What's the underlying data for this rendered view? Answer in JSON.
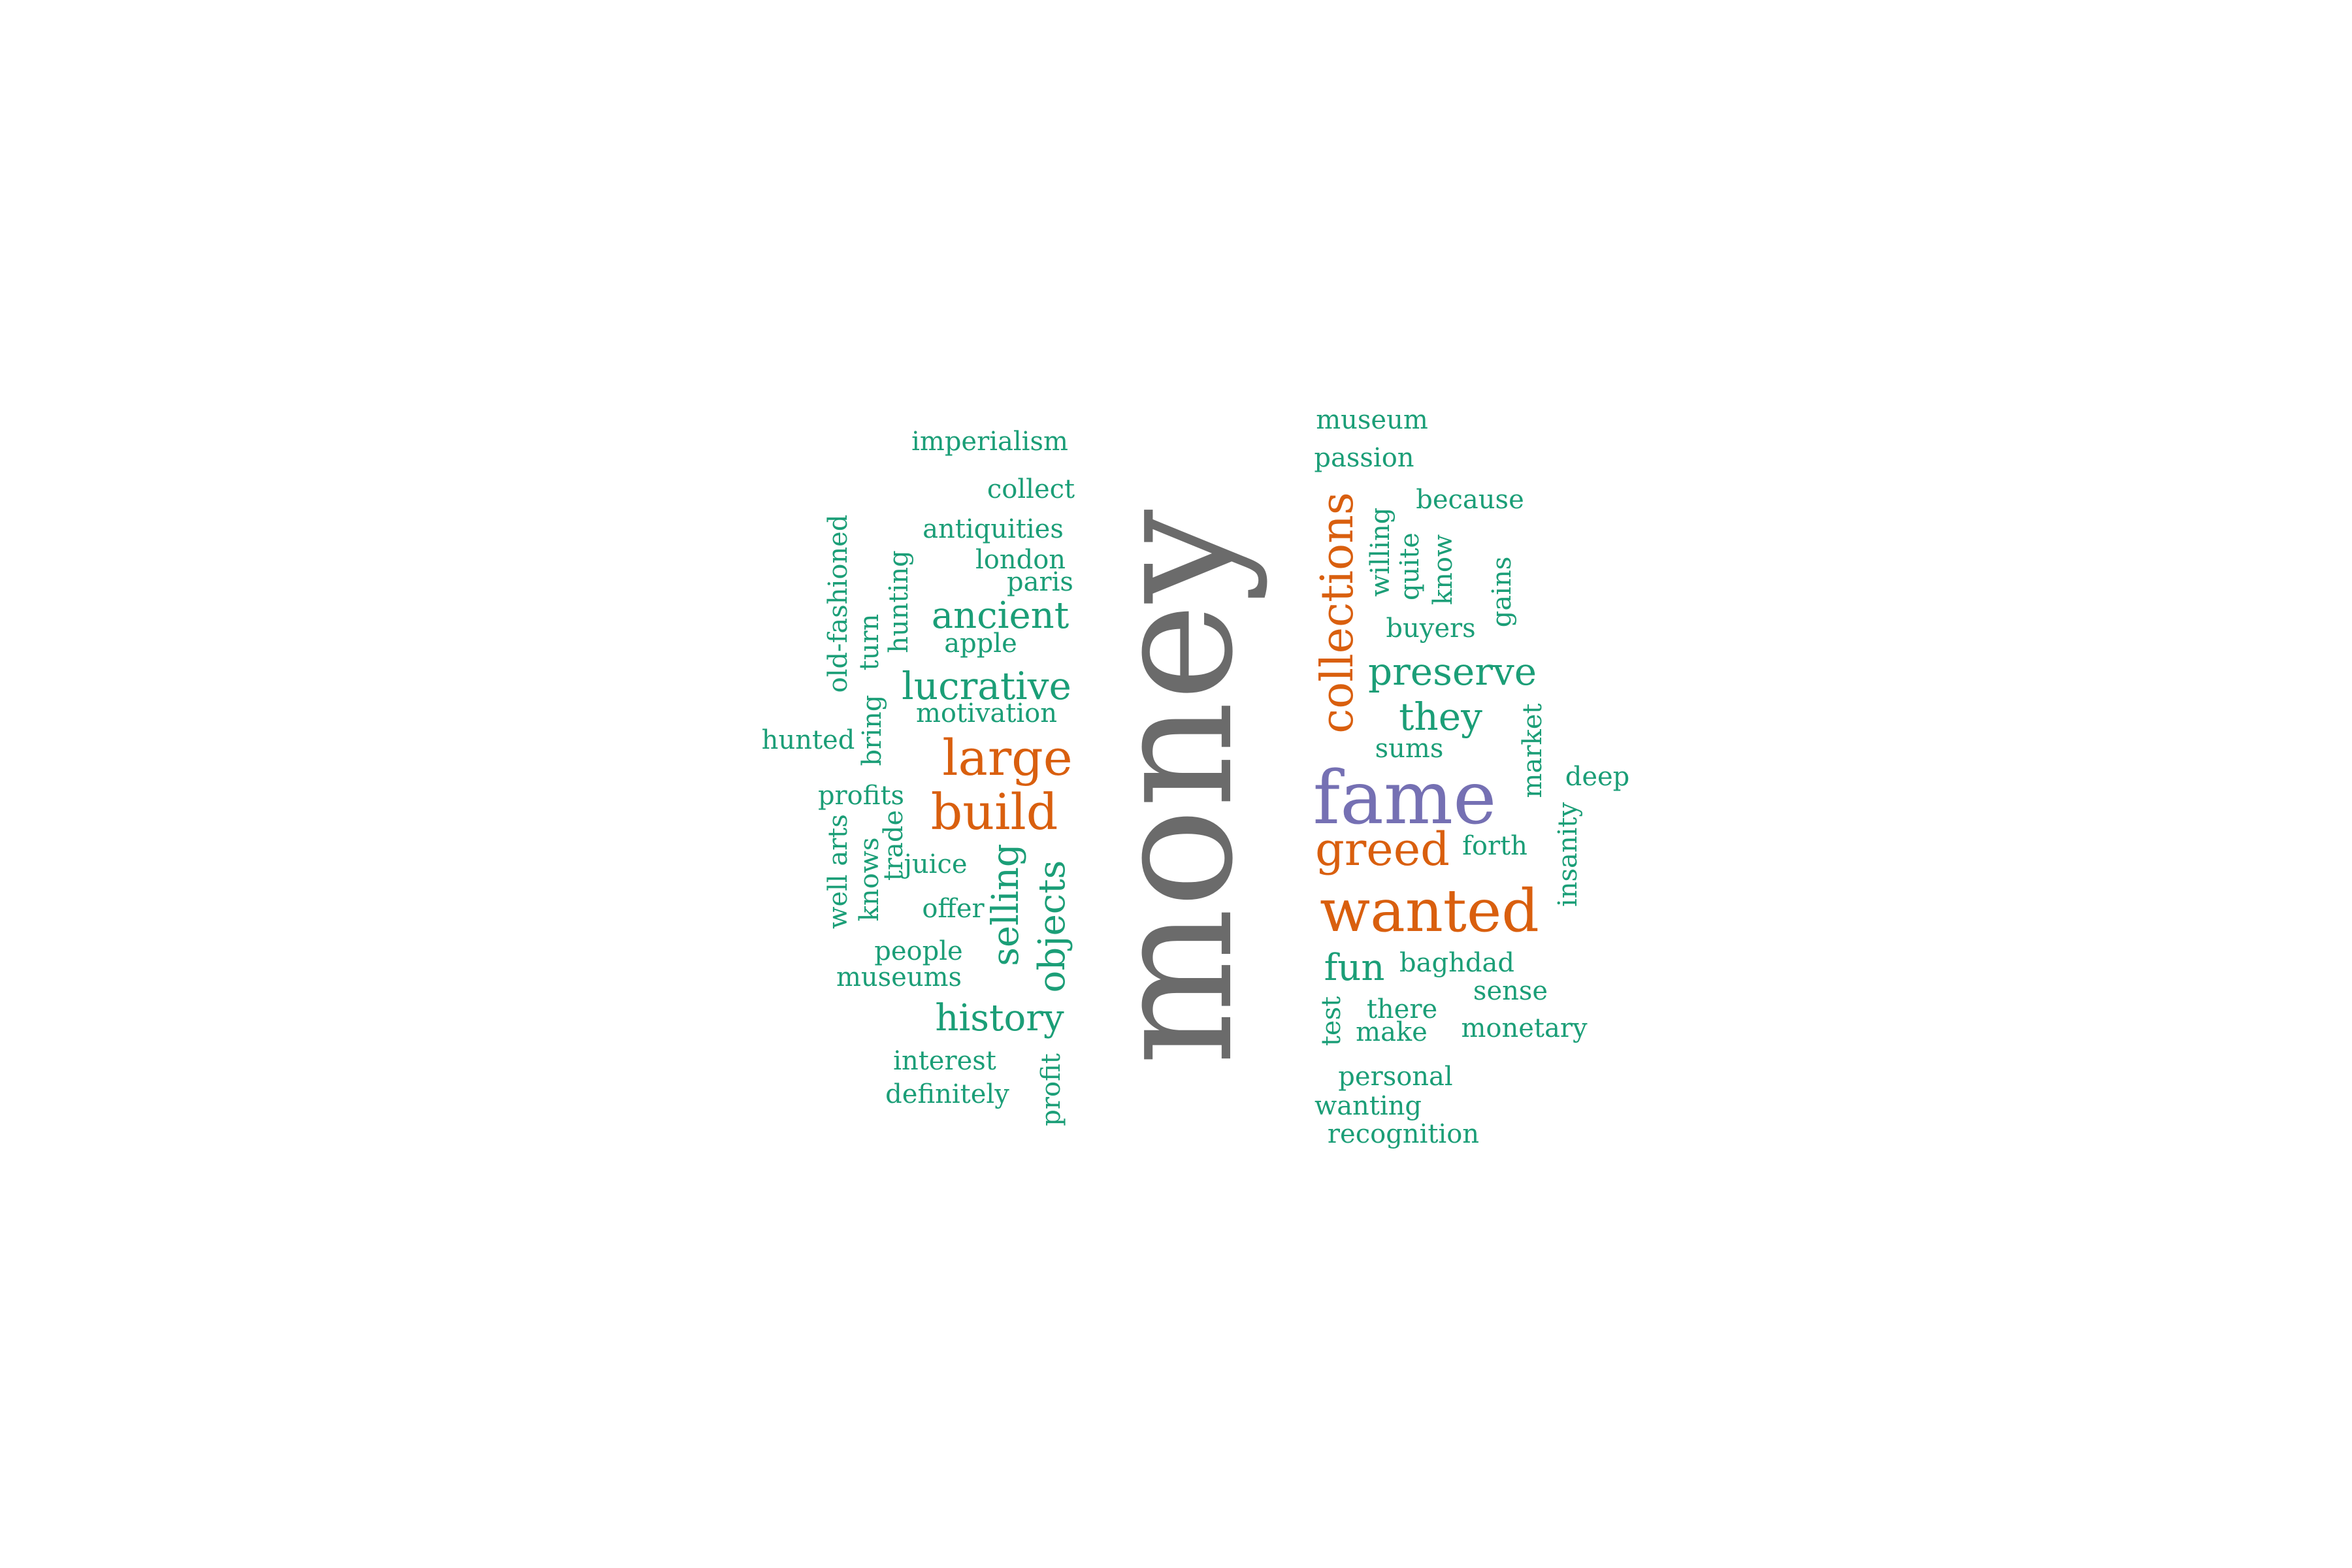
{
  "colors": {
    "gray": "#6b6b6b",
    "orange": "#d95f0e",
    "purple": "#7570b3",
    "green": "#1b9e77"
  },
  "words": [
    {
      "text": "money",
      "color": "gray"
    },
    {
      "text": "fame",
      "color": "purple"
    },
    {
      "text": "wanted",
      "color": "orange"
    },
    {
      "text": "collections",
      "color": "orange"
    },
    {
      "text": "large",
      "color": "orange"
    },
    {
      "text": "build",
      "color": "orange"
    },
    {
      "text": "greed",
      "color": "orange"
    },
    {
      "text": "museum",
      "color": "green"
    },
    {
      "text": "passion",
      "color": "green"
    },
    {
      "text": "imperialism",
      "color": "green"
    },
    {
      "text": "collect",
      "color": "green"
    },
    {
      "text": "because",
      "color": "green"
    },
    {
      "text": "antiquities",
      "color": "green"
    },
    {
      "text": "london",
      "color": "green"
    },
    {
      "text": "paris",
      "color": "green"
    },
    {
      "text": "old-fashioned",
      "color": "green"
    },
    {
      "text": "hunting",
      "color": "green"
    },
    {
      "text": "willing",
      "color": "green"
    },
    {
      "text": "quite",
      "color": "green"
    },
    {
      "text": "know",
      "color": "green"
    },
    {
      "text": "gains",
      "color": "green"
    },
    {
      "text": "ancient",
      "color": "green"
    },
    {
      "text": "apple",
      "color": "green"
    },
    {
      "text": "buyers",
      "color": "green"
    },
    {
      "text": "turn",
      "color": "green"
    },
    {
      "text": "lucrative",
      "color": "green"
    },
    {
      "text": "preserve",
      "color": "green"
    },
    {
      "text": "motivation",
      "color": "green"
    },
    {
      "text": "they",
      "color": "green"
    },
    {
      "text": "hunted",
      "color": "green"
    },
    {
      "text": "bring",
      "color": "green"
    },
    {
      "text": "sums",
      "color": "green"
    },
    {
      "text": "market",
      "color": "green"
    },
    {
      "text": "deep",
      "color": "green"
    },
    {
      "text": "profits",
      "color": "green"
    },
    {
      "text": "well arts",
      "color": "green"
    },
    {
      "text": "knows",
      "color": "green"
    },
    {
      "text": "trade",
      "color": "green"
    },
    {
      "text": "juice",
      "color": "green"
    },
    {
      "text": "selling",
      "color": "green"
    },
    {
      "text": "forth",
      "color": "green"
    },
    {
      "text": "insanity",
      "color": "green"
    },
    {
      "text": "offer",
      "color": "green"
    },
    {
      "text": "objects",
      "color": "green"
    },
    {
      "text": "people",
      "color": "green"
    },
    {
      "text": "museums",
      "color": "green"
    },
    {
      "text": "fun",
      "color": "green"
    },
    {
      "text": "baghdad",
      "color": "green"
    },
    {
      "text": "sense",
      "color": "green"
    },
    {
      "text": "history",
      "color": "green"
    },
    {
      "text": "test",
      "color": "green"
    },
    {
      "text": "there",
      "color": "green"
    },
    {
      "text": "make",
      "color": "green"
    },
    {
      "text": "monetary",
      "color": "green"
    },
    {
      "text": "interest",
      "color": "green"
    },
    {
      "text": "profit",
      "color": "green"
    },
    {
      "text": "personal",
      "color": "green"
    },
    {
      "text": "definitely",
      "color": "green"
    },
    {
      "text": "wanting",
      "color": "green"
    },
    {
      "text": "recognition",
      "color": "green"
    }
  ]
}
